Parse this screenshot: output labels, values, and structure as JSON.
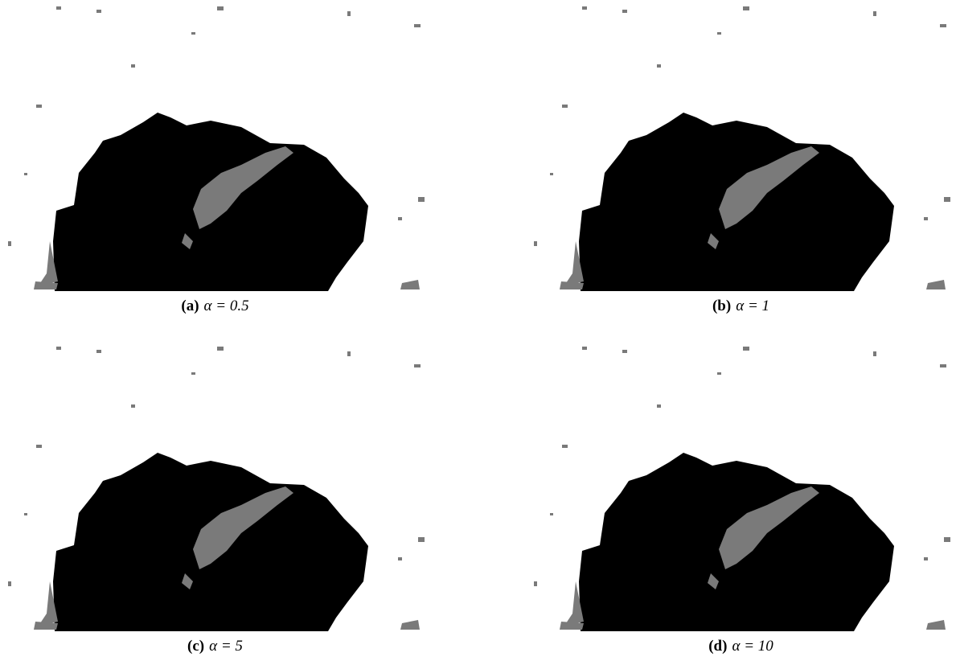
{
  "figure": {
    "panels": [
      {
        "label": "(a)",
        "caption": "α = 0.5"
      },
      {
        "label": "(b)",
        "caption": "α = 1"
      },
      {
        "label": "(c)",
        "caption": "α = 5"
      },
      {
        "label": "(d)",
        "caption": "α = 10"
      }
    ]
  }
}
